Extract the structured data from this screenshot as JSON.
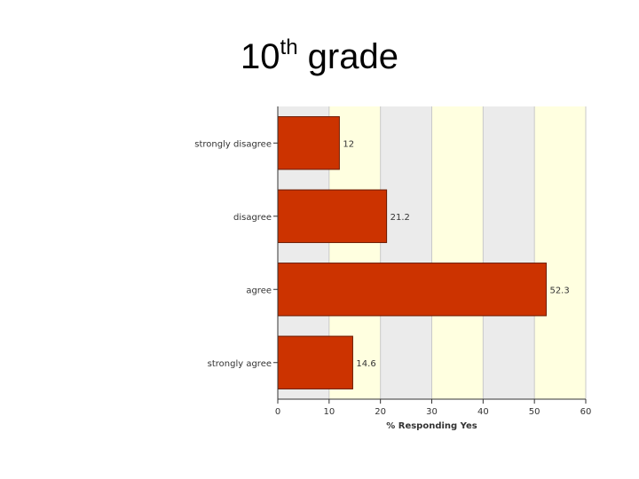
{
  "slide": {
    "title_main": "10",
    "title_sup": "th",
    "title_rest": " grade"
  },
  "chart_data": {
    "type": "bar",
    "orientation": "horizontal",
    "categories": [
      "strongly disagree",
      "disagree",
      "agree",
      "strongly agree"
    ],
    "values": [
      12,
      21.2,
      52.3,
      14.6
    ],
    "value_labels": [
      "12",
      "21.2",
      "52.3",
      "14.6"
    ],
    "xlabel": "% Responding Yes",
    "ylabel": "",
    "xlim": [
      0,
      60
    ],
    "x_ticks": [
      0,
      10,
      20,
      30,
      40,
      50,
      60
    ],
    "grid": "alternating vertical bands",
    "legend": "none",
    "colors": {
      "bar_fill": "#cc3300",
      "bar_stroke": "#6b1a00",
      "band_light": "#ffffe0",
      "band_gray": "#ebebeb",
      "axis": "#333333"
    }
  }
}
